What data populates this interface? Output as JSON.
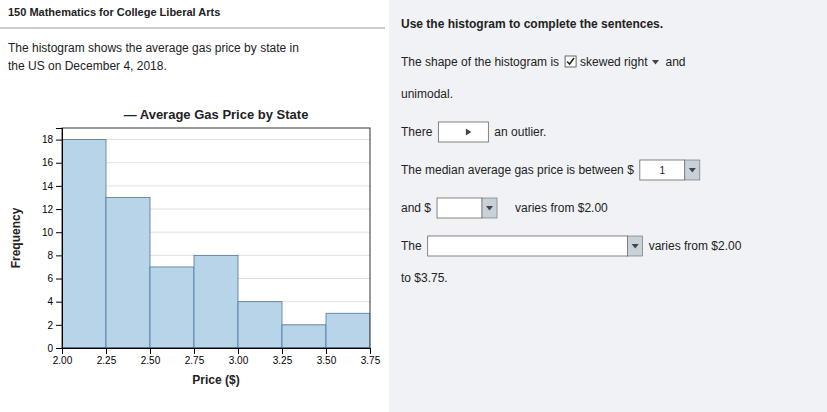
{
  "chart_data": {
    "type": "histogram",
    "title": "— Average Gas Price by State",
    "xlabel": "Price ($)",
    "ylabel": "Frequency",
    "bins": [
      2.0,
      2.25,
      2.5,
      2.75,
      3.0,
      3.25,
      3.5,
      3.75
    ],
    "values": [
      18,
      13,
      7,
      8,
      4,
      2,
      3
    ],
    "color": "#b8d4e8",
    "xlim": [
      2.0,
      3.75
    ],
    "xticks": [
      {
        "value": 2.0,
        "label": "2.00"
      },
      {
        "value": 2.25,
        "label": "2.25"
      },
      {
        "value": 2.5,
        "label": "2.50"
      },
      {
        "value": 2.75,
        "label": "2.75"
      },
      {
        "value": 3.0,
        "label": "3.00"
      },
      {
        "value": 3.25,
        "label": "3.25"
      },
      {
        "value": 3.5,
        "label": "3.50"
      },
      {
        "value": 3.75,
        "label": "3.75"
      }
    ],
    "ylim": [
      0,
      19
    ],
    "yticks": [
      0,
      2,
      4,
      6,
      8,
      10,
      12,
      14,
      16,
      18
    ],
    "grid": true,
    "annotations": [
      "150 Mathematics for College Liberal Arts",
      "The histogram shows the average gas price by state in",
      "the US on December 4, 2018.",
      "Use the histogram to complete the sentences.",
      "The shape of the histogram is",
      "skewed right",
      "and",
      "unimodal.",
      "There",
      "an outlier.",
      "The median average gas price is between $",
      "1",
      "and $",
      "varies from $2.00",
      "The",
      "varies from $2.00",
      "to $3.75."
    ]
  }
}
